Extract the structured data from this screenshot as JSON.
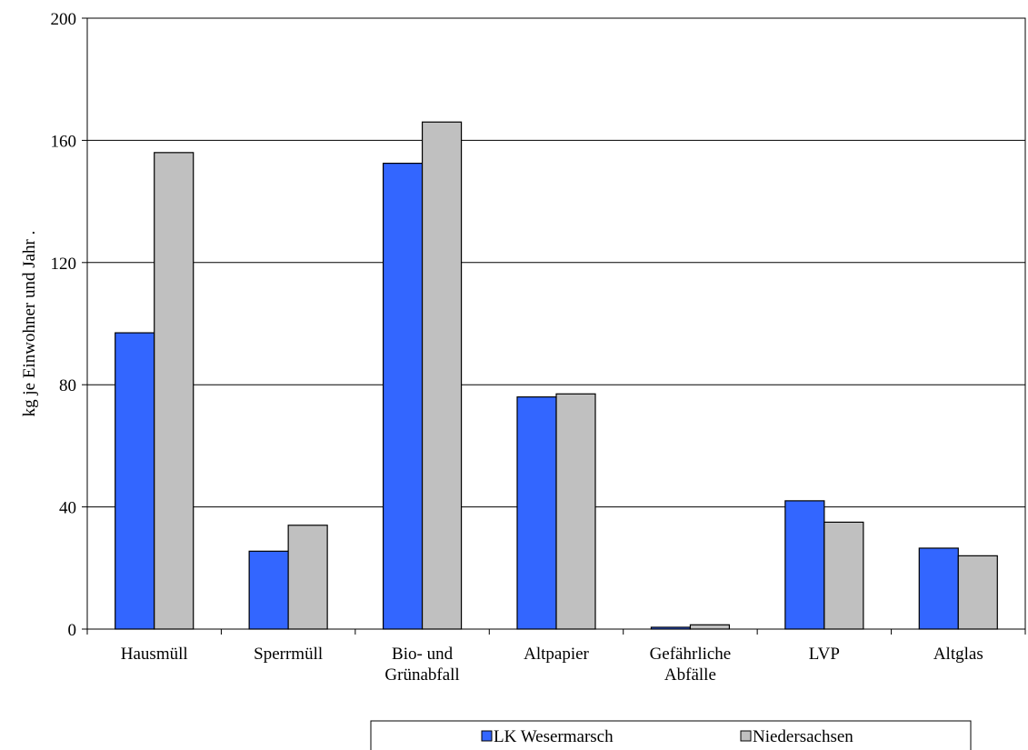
{
  "chart_data": {
    "type": "bar",
    "title": "",
    "xlabel": "",
    "ylabel": "kg je Einwohner und Jahr .",
    "ylim": [
      0,
      200
    ],
    "yticks": [
      0,
      40,
      80,
      120,
      160,
      200
    ],
    "grid": true,
    "legend_position": "bottom",
    "categories": [
      [
        "Hausmüll"
      ],
      [
        "Sperrmüll"
      ],
      [
        "Bio- und",
        "Grünabfall"
      ],
      [
        "Altpapier"
      ],
      [
        "Gefährliche",
        "Abfälle"
      ],
      [
        "LVP"
      ],
      [
        "Altglas"
      ]
    ],
    "series": [
      {
        "name": "LK Wesermarsch",
        "color": "#3366FF",
        "values": [
          97,
          25.5,
          152.5,
          76,
          0.6,
          42,
          26.5
        ]
      },
      {
        "name": "Niedersachsen",
        "color": "#C0C0C0",
        "values": [
          156,
          34,
          166,
          77,
          1.4,
          35,
          24
        ]
      }
    ]
  }
}
